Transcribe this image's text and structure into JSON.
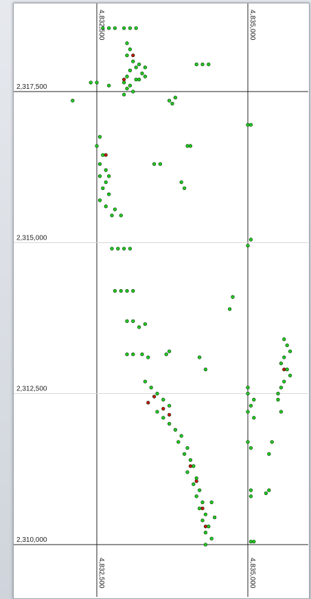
{
  "chart_data": {
    "type": "scatter",
    "title": "",
    "xlabel": "",
    "ylabel": "",
    "x_ticks": [
      "4,832,500",
      "4,835,000"
    ],
    "y_ticks": [
      "2,317,500",
      "2,315,000",
      "2,312,500",
      "2,310,000"
    ],
    "xlim": [
      4830500,
      4836000
    ],
    "ylim": [
      2309800,
      2319000
    ],
    "grid": true,
    "series": [
      {
        "color": "#22cc22",
        "points": [
          [
            4832600,
            2318550
          ],
          [
            4832700,
            2318550
          ],
          [
            4832800,
            2318550
          ],
          [
            4832950,
            2318550
          ],
          [
            4833050,
            2318550
          ],
          [
            4833150,
            2318550
          ],
          [
            4833000,
            2318300
          ],
          [
            4833050,
            2318200
          ],
          [
            4833000,
            2318100
          ],
          [
            4833100,
            2318000
          ],
          [
            4833150,
            2317900
          ],
          [
            4833050,
            2317850
          ],
          [
            4833200,
            2317950
          ],
          [
            4833300,
            2317900
          ],
          [
            4833250,
            2317800
          ],
          [
            4833150,
            2317700
          ],
          [
            4833000,
            2317750
          ],
          [
            4832950,
            2317650
          ],
          [
            4833050,
            2317600
          ],
          [
            4833100,
            2317500
          ],
          [
            4833000,
            2317550
          ],
          [
            4832950,
            2317450
          ],
          [
            4833200,
            2317700
          ],
          [
            4833300,
            2317750
          ],
          [
            4832400,
            2317650
          ],
          [
            4832500,
            2317650
          ],
          [
            4832700,
            2317600
          ],
          [
            4832100,
            2317350
          ],
          [
            4833800,
            2317400
          ],
          [
            4833700,
            2317350
          ],
          [
            4833750,
            2317300
          ],
          [
            4834150,
            2317950
          ],
          [
            4834250,
            2317950
          ],
          [
            4834350,
            2317950
          ],
          [
            4832550,
            2316750
          ],
          [
            4832500,
            2316600
          ],
          [
            4832600,
            2316450
          ],
          [
            4832550,
            2316300
          ],
          [
            4832650,
            2316200
          ],
          [
            4832550,
            2316100
          ],
          [
            4832650,
            2316000
          ],
          [
            4832600,
            2315900
          ],
          [
            4832700,
            2315800
          ],
          [
            4832550,
            2315700
          ],
          [
            4832650,
            2315600
          ],
          [
            4832700,
            2316100
          ],
          [
            4832800,
            2315550
          ],
          [
            4832750,
            2315450
          ],
          [
            4832900,
            2315450
          ],
          [
            4833550,
            2316300
          ],
          [
            4833450,
            2316300
          ],
          [
            4833900,
            2316000
          ],
          [
            4833950,
            2315900
          ],
          [
            4834050,
            2316600
          ],
          [
            4834000,
            2316600
          ],
          [
            4835000,
            2316950
          ],
          [
            4835050,
            2316950
          ],
          [
            4835000,
            2314950
          ],
          [
            4835050,
            2315050
          ],
          [
            4832750,
            2314900
          ],
          [
            4832850,
            2314900
          ],
          [
            4832950,
            2314900
          ],
          [
            4833050,
            2314900
          ],
          [
            4832800,
            2314200
          ],
          [
            4832900,
            2314200
          ],
          [
            4833000,
            2314200
          ],
          [
            4833100,
            2314200
          ],
          [
            4834750,
            2314100
          ],
          [
            4834700,
            2313900
          ],
          [
            4833000,
            2313700
          ],
          [
            4833100,
            2313700
          ],
          [
            4833200,
            2313600
          ],
          [
            4833300,
            2313650
          ],
          [
            4833000,
            2313150
          ],
          [
            4833100,
            2313150
          ],
          [
            4833250,
            2313150
          ],
          [
            4833350,
            2313100
          ],
          [
            4833650,
            2313150
          ],
          [
            4833700,
            2313200
          ],
          [
            4834200,
            2313100
          ],
          [
            4834300,
            2312900
          ],
          [
            4833300,
            2312700
          ],
          [
            4833400,
            2312600
          ],
          [
            4833500,
            2312500
          ],
          [
            4833600,
            2312400
          ],
          [
            4833700,
            2312300
          ],
          [
            4833500,
            2312200
          ],
          [
            4833600,
            2312100
          ],
          [
            4833700,
            2312000
          ],
          [
            4833800,
            2311900
          ],
          [
            4833900,
            2311800
          ],
          [
            4833850,
            2311700
          ],
          [
            4834000,
            2311600
          ],
          [
            4833950,
            2311500
          ],
          [
            4834050,
            2311400
          ],
          [
            4834100,
            2311300
          ],
          [
            4834000,
            2311200
          ],
          [
            4834150,
            2311100
          ],
          [
            4834100,
            2311000
          ],
          [
            4834200,
            2310900
          ],
          [
            4834150,
            2310800
          ],
          [
            4834250,
            2310700
          ],
          [
            4834200,
            2310600
          ],
          [
            4834300,
            2310500
          ],
          [
            4834250,
            2310400
          ],
          [
            4834350,
            2310300
          ],
          [
            4834300,
            2310200
          ],
          [
            4834400,
            2310100
          ],
          [
            4834300,
            2310000
          ],
          [
            4834450,
            2310450
          ],
          [
            4834400,
            2310700
          ],
          [
            4835000,
            2312600
          ],
          [
            4835000,
            2312500
          ],
          [
            4835100,
            2312400
          ],
          [
            4835050,
            2312300
          ],
          [
            4835000,
            2312200
          ],
          [
            4835100,
            2312100
          ],
          [
            4835050,
            2310800
          ],
          [
            4835050,
            2310900
          ],
          [
            4835000,
            2311700
          ],
          [
            4835050,
            2311600
          ],
          [
            4835500,
            2312500
          ],
          [
            4835550,
            2312600
          ],
          [
            4835600,
            2312700
          ],
          [
            4835700,
            2312800
          ],
          [
            4835650,
            2312900
          ],
          [
            4835550,
            2313000
          ],
          [
            4835600,
            2313100
          ],
          [
            4835700,
            2313200
          ],
          [
            4835650,
            2313300
          ],
          [
            4835600,
            2313400
          ],
          [
            4835500,
            2312400
          ],
          [
            4835550,
            2312200
          ],
          [
            4835400,
            2311700
          ],
          [
            4835350,
            2311500
          ],
          [
            4835350,
            2310900
          ],
          [
            4835300,
            2310850
          ],
          [
            4835100,
            2310050
          ],
          [
            4835050,
            2310050
          ]
        ]
      },
      {
        "color": "#cc1111",
        "points": [
          [
            4833100,
            2318100
          ],
          [
            4832950,
            2317700
          ],
          [
            4832650,
            2316450
          ],
          [
            4833450,
            2312450
          ],
          [
            4833600,
            2312250
          ],
          [
            4833350,
            2312350
          ],
          [
            4833700,
            2312150
          ],
          [
            4834050,
            2311300
          ],
          [
            4834150,
            2311050
          ],
          [
            4834250,
            2310600
          ],
          [
            4834300,
            2310300
          ],
          [
            4835600,
            2312900
          ]
        ]
      }
    ]
  }
}
